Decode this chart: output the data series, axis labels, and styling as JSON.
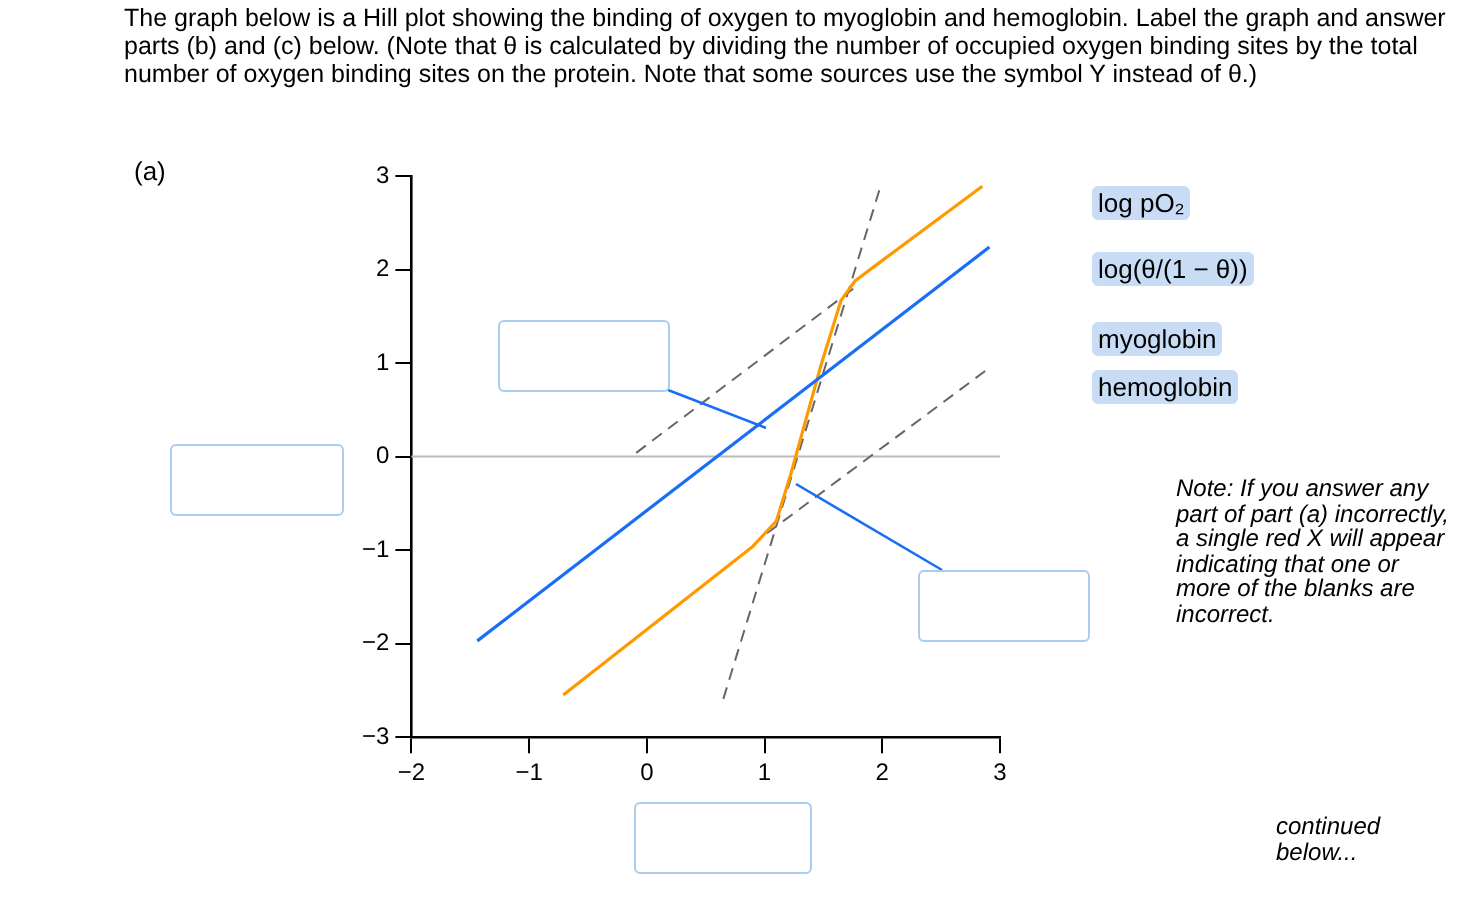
{
  "chart_data": {
    "type": "line",
    "title": "The graph below is a Hill plot showing the binding of oxygen to myoglobin and hemoglobin. Label the graph and answer parts (b) and (c) below. (Note that θ is calculated by dividing the number of occupied oxygen binding sites by the total number of oxygen binding sites on the protein. Note that some sources use the symbol Y instead of θ.)",
    "annotations": [
      "(a)",
      "log pO₂",
      "log(θ/(1 − θ))",
      "myoglobin",
      "hemoglobin",
      "Note: If you answer any part of part (a) incorrectly, a single red X will appear indicating that one or more of the blanks are incorrect.",
      "continued below..."
    ],
    "series": [
      {
        "color": "#1a6ef5",
        "x": [
          -1.44,
          2.91
        ],
        "values": [
          -1.97,
          2.24
        ]
      },
      {
        "color": "#ff9900",
        "x": [
          -0.71,
          0.9,
          1.1,
          1.22,
          1.48,
          1.65,
          1.77,
          1.95,
          2.85
        ],
        "values": [
          -2.55,
          -0.96,
          -0.69,
          -0.2,
          0.98,
          1.67,
          1.88,
          2.05,
          2.89
        ]
      },
      {
        "color": "#666666",
        "line_style": "dashed",
        "x": [
          0.65,
          1.99
        ],
        "values": [
          -2.59,
          2.91
        ]
      },
      {
        "color": "#666666",
        "line_style": "dashed",
        "x": [
          -0.09,
          1.77
        ],
        "values": [
          0.04,
          1.81
        ]
      },
      {
        "color": "#666666",
        "line_style": "dashed",
        "x": [
          1.02,
          2.89
        ],
        "values": [
          -0.82,
          0.93
        ]
      }
    ],
    "xlim": [
      -2,
      3
    ],
    "xticks": [
      {
        "value": -2,
        "label": "−2"
      },
      {
        "value": -1,
        "label": "−1"
      },
      0,
      1,
      2,
      3
    ],
    "ylim": [
      -3,
      3
    ],
    "yticks": [
      {
        "value": -3,
        "label": "−3"
      },
      {
        "value": -2,
        "label": "−2"
      },
      {
        "value": -1,
        "label": "−1"
      },
      0,
      1,
      2,
      3
    ],
    "ref_lines": [
      {
        "axis": "y",
        "value": 0,
        "color": "#bbbbbb"
      }
    ],
    "grid": false,
    "legend": false,
    "marker": "none",
    "line_style": "solid"
  }
}
